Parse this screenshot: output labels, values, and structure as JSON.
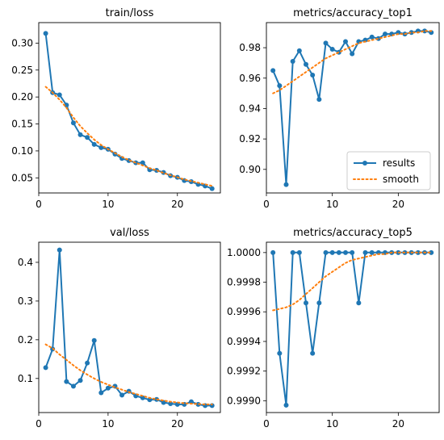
{
  "chart_data": [
    {
      "type": "line",
      "title": "train/loss",
      "xlim": [
        0,
        26.2
      ],
      "ylim": [
        0.022,
        0.338
      ],
      "xticks": [
        0,
        10,
        20
      ],
      "yticks": [
        0.05,
        0.1,
        0.15,
        0.2,
        0.25,
        0.3
      ],
      "ytick_labels": [
        "0.05",
        "0.10",
        "0.15",
        "0.20",
        "0.25",
        "0.30"
      ],
      "series": [
        {
          "name": "results",
          "x": [
            1,
            2,
            3,
            4,
            5,
            6,
            7,
            8,
            9,
            10,
            11,
            12,
            13,
            14,
            15,
            16,
            17,
            18,
            19,
            20,
            21,
            22,
            23,
            24,
            25
          ],
          "y": [
            0.318,
            0.208,
            0.204,
            0.185,
            0.152,
            0.13,
            0.125,
            0.112,
            0.106,
            0.103,
            0.094,
            0.086,
            0.082,
            0.078,
            0.078,
            0.065,
            0.064,
            0.06,
            0.054,
            0.051,
            0.045,
            0.043,
            0.038,
            0.035,
            0.03
          ]
        },
        {
          "name": "smooth",
          "x": [
            1,
            2,
            3,
            4,
            5,
            6,
            7,
            8,
            9,
            10,
            11,
            12,
            13,
            14,
            15,
            16,
            17,
            18,
            19,
            20,
            21,
            22,
            23,
            24,
            25
          ],
          "y": [
            0.219,
            0.208,
            0.195,
            0.18,
            0.162,
            0.146,
            0.133,
            0.121,
            0.111,
            0.103,
            0.096,
            0.089,
            0.083,
            0.078,
            0.073,
            0.068,
            0.064,
            0.059,
            0.055,
            0.051,
            0.047,
            0.044,
            0.041,
            0.038,
            0.035
          ]
        }
      ]
    },
    {
      "type": "line",
      "title": "metrics/accuracy_top1",
      "xlim": [
        0,
        26.2
      ],
      "ylim": [
        0.8845,
        0.9965
      ],
      "xticks": [
        0,
        10,
        20
      ],
      "yticks": [
        0.9,
        0.92,
        0.94,
        0.96,
        0.98
      ],
      "ytick_labels": [
        "0.90",
        "0.92",
        "0.94",
        "0.96",
        "0.98"
      ],
      "legend": {
        "placement": "lower-right",
        "entries": [
          "results",
          "smooth"
        ]
      },
      "series": [
        {
          "name": "results",
          "x": [
            1,
            2,
            3,
            4,
            5,
            6,
            7,
            8,
            9,
            10,
            11,
            12,
            13,
            14,
            15,
            16,
            17,
            18,
            19,
            20,
            21,
            22,
            23,
            24,
            25
          ],
          "y": [
            0.965,
            0.955,
            0.89,
            0.971,
            0.978,
            0.969,
            0.962,
            0.946,
            0.983,
            0.979,
            0.977,
            0.984,
            0.976,
            0.984,
            0.985,
            0.987,
            0.986,
            0.989,
            0.989,
            0.99,
            0.989,
            0.99,
            0.991,
            0.991,
            0.99
          ]
        },
        {
          "name": "smooth",
          "x": [
            1,
            2,
            3,
            4,
            5,
            6,
            7,
            8,
            9,
            10,
            11,
            12,
            13,
            14,
            15,
            16,
            17,
            18,
            19,
            20,
            21,
            22,
            23,
            24,
            25
          ],
          "y": [
            0.95,
            0.952,
            0.955,
            0.958,
            0.961,
            0.964,
            0.967,
            0.97,
            0.973,
            0.975,
            0.977,
            0.979,
            0.981,
            0.983,
            0.984,
            0.985,
            0.986,
            0.987,
            0.988,
            0.989,
            0.989,
            0.99,
            0.99,
            0.991,
            0.991
          ]
        }
      ]
    },
    {
      "type": "line",
      "title": "val/loss",
      "xlim": [
        0,
        26.2
      ],
      "ylim": [
        0.012,
        0.452
      ],
      "xticks": [
        0,
        10,
        20
      ],
      "yticks": [
        0.1,
        0.2,
        0.3,
        0.4
      ],
      "ytick_labels": [
        "0.1",
        "0.2",
        "0.3",
        "0.4"
      ],
      "series": [
        {
          "name": "results",
          "x": [
            1,
            2,
            3,
            4,
            5,
            6,
            7,
            8,
            9,
            10,
            11,
            12,
            13,
            14,
            15,
            16,
            17,
            18,
            19,
            20,
            21,
            22,
            23,
            24,
            25
          ],
          "y": [
            0.128,
            0.176,
            0.432,
            0.092,
            0.08,
            0.095,
            0.14,
            0.198,
            0.063,
            0.075,
            0.08,
            0.057,
            0.067,
            0.055,
            0.05,
            0.045,
            0.046,
            0.038,
            0.035,
            0.033,
            0.033,
            0.04,
            0.033,
            0.03,
            0.03
          ]
        },
        {
          "name": "smooth",
          "x": [
            1,
            2,
            3,
            4,
            5,
            6,
            7,
            8,
            9,
            10,
            11,
            12,
            13,
            14,
            15,
            16,
            17,
            18,
            19,
            20,
            21,
            22,
            23,
            24,
            25
          ],
          "y": [
            0.188,
            0.178,
            0.162,
            0.148,
            0.134,
            0.121,
            0.11,
            0.1,
            0.091,
            0.084,
            0.077,
            0.071,
            0.065,
            0.06,
            0.055,
            0.05,
            0.046,
            0.043,
            0.04,
            0.038,
            0.036,
            0.035,
            0.034,
            0.033,
            0.033
          ]
        }
      ]
    },
    {
      "type": "line",
      "title": "metrics/accuracy_top5",
      "xlim": [
        0,
        26.2
      ],
      "ylim": [
        0.99892,
        1.00007
      ],
      "xticks": [
        0,
        10,
        20
      ],
      "yticks": [
        0.999,
        0.9992,
        0.9994,
        0.9996,
        0.9998,
        1.0
      ],
      "ytick_labels": [
        "0.9990",
        "0.9992",
        "0.9994",
        "0.9996",
        "0.9998",
        "1.0000"
      ],
      "series": [
        {
          "name": "results",
          "x": [
            1,
            2,
            3,
            4,
            5,
            6,
            7,
            8,
            9,
            10,
            11,
            12,
            13,
            14,
            15,
            16,
            17,
            18,
            19,
            20,
            21,
            22,
            23,
            24,
            25
          ],
          "y": [
            1.0,
            0.99932,
            0.99897,
            1.0,
            1.0,
            0.99966,
            0.99932,
            0.99966,
            1.0,
            1.0,
            1.0,
            1.0,
            1.0,
            0.99966,
            1.0,
            1.0,
            1.0,
            1.0,
            1.0,
            1.0,
            1.0,
            1.0,
            1.0,
            1.0,
            1.0
          ]
        },
        {
          "name": "smooth",
          "x": [
            1,
            2,
            3,
            4,
            5,
            6,
            7,
            8,
            9,
            10,
            11,
            12,
            13,
            14,
            15,
            16,
            17,
            18,
            19,
            20,
            21,
            22,
            23,
            24,
            25
          ],
          "y": [
            0.99961,
            0.99962,
            0.99963,
            0.99965,
            0.99968,
            0.99972,
            0.99976,
            0.9998,
            0.99984,
            0.99987,
            0.9999,
            0.99993,
            0.99995,
            0.99996,
            0.99997,
            0.99998,
            0.99999,
            0.99999,
            1.0,
            1.0,
            1.0,
            1.0,
            1.0,
            1.0,
            1.0
          ]
        }
      ]
    }
  ],
  "colors": {
    "results": "#1f77b4",
    "smooth": "#ff7f0e",
    "axes": "#000000"
  }
}
